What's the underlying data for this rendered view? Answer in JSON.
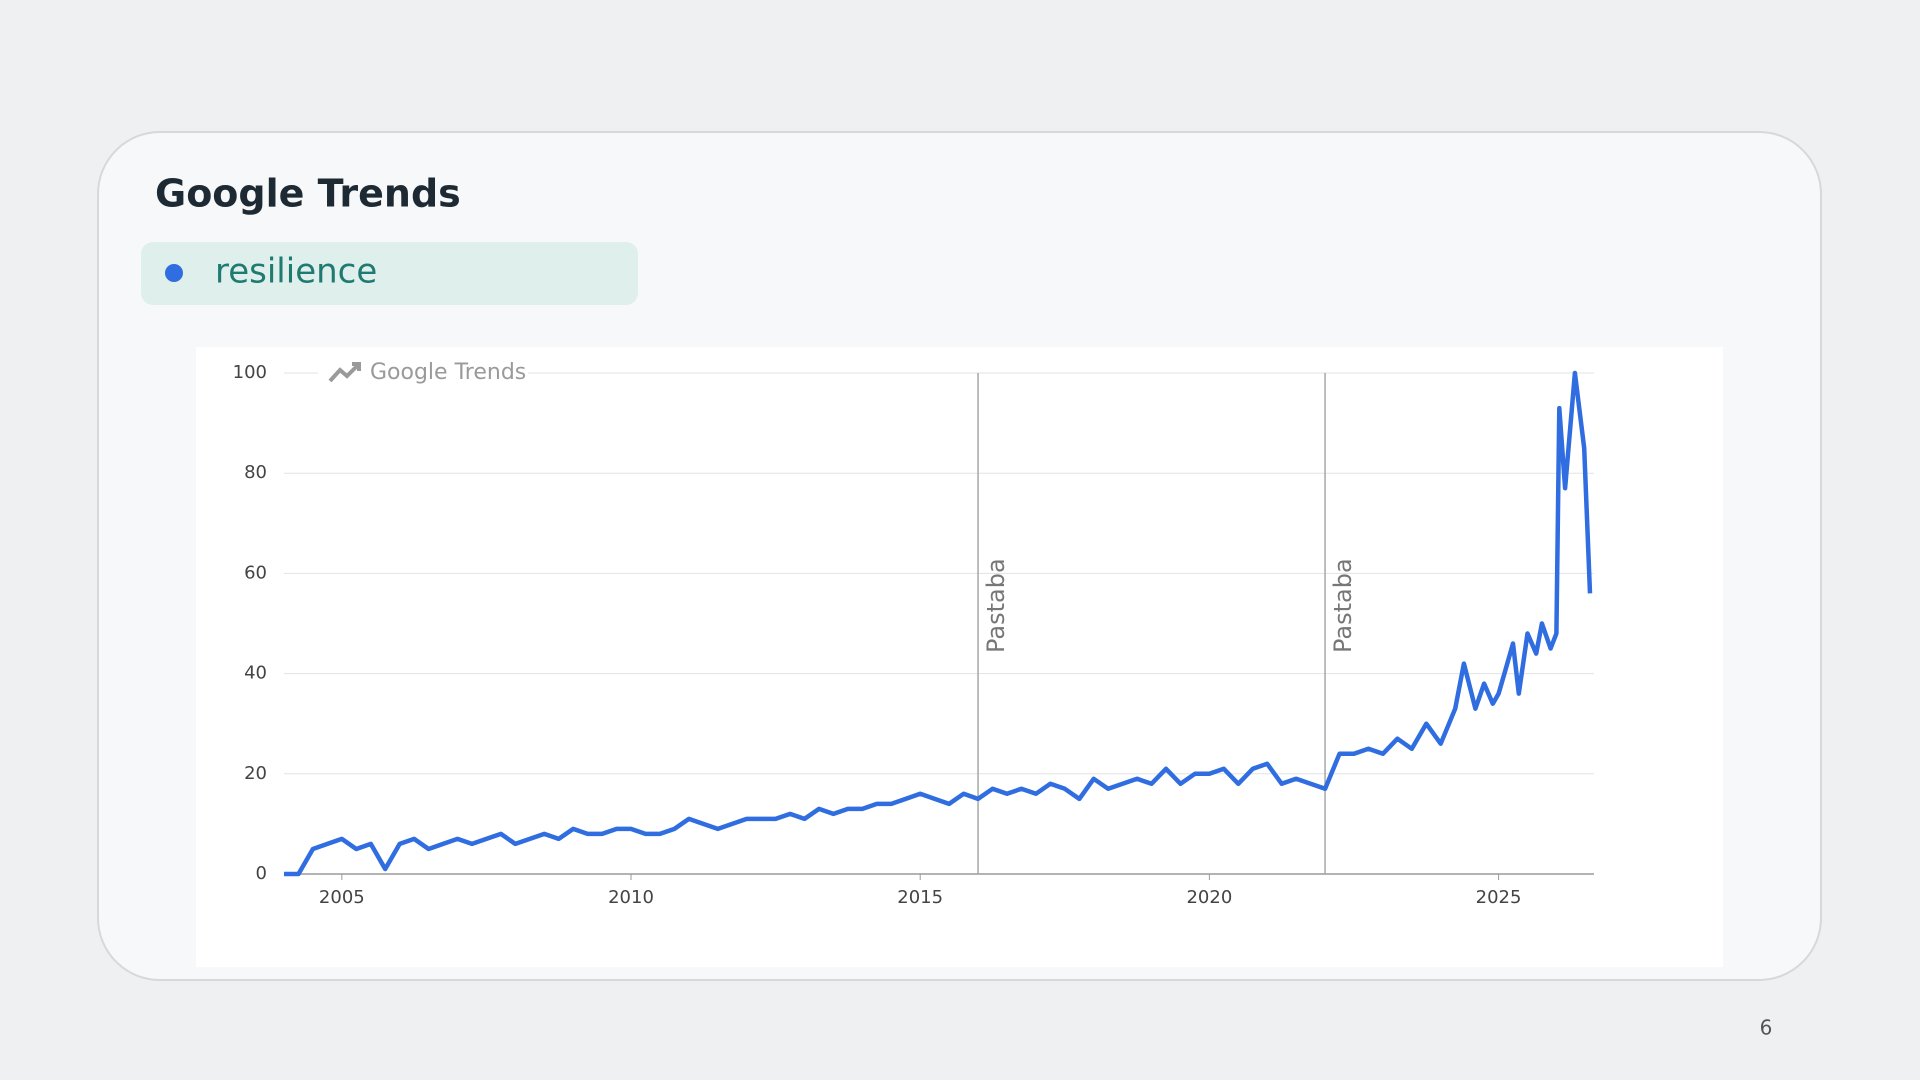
{
  "slide": {
    "title": "Google Trends",
    "page_number": "6"
  },
  "chart_data": {
    "type": "line",
    "watermark": "Google Trends",
    "xlim": [
      2004,
      2026.65
    ],
    "xticks": [
      2005,
      2010,
      2015,
      2020,
      2025
    ],
    "ylim": [
      0,
      100
    ],
    "yticks": [
      0,
      20,
      40,
      60,
      80,
      100
    ],
    "grid": true,
    "x": [
      2004,
      2004.25,
      2004.5,
      2004.75,
      2005,
      2005.25,
      2005.5,
      2005.75,
      2006,
      2006.25,
      2006.5,
      2006.75,
      2007,
      2007.25,
      2007.5,
      2007.75,
      2008,
      2008.25,
      2008.5,
      2008.75,
      2009,
      2009.25,
      2009.5,
      2009.75,
      2010,
      2010.25,
      2010.5,
      2010.75,
      2011,
      2011.25,
      2011.5,
      2011.75,
      2012,
      2012.25,
      2012.5,
      2012.75,
      2013,
      2013.25,
      2013.5,
      2013.75,
      2014,
      2014.25,
      2014.5,
      2014.75,
      2015,
      2015.25,
      2015.5,
      2015.75,
      2016,
      2016.25,
      2016.5,
      2016.75,
      2017,
      2017.25,
      2017.5,
      2017.75,
      2018,
      2018.25,
      2018.5,
      2018.75,
      2019,
      2019.25,
      2019.5,
      2019.75,
      2020,
      2020.25,
      2020.5,
      2020.75,
      2021,
      2021.25,
      2021.5,
      2021.75,
      2022,
      2022.25,
      2022.5,
      2022.75,
      2023,
      2023.25,
      2023.5,
      2023.75,
      2024,
      2024.25,
      2024.4,
      2024.6,
      2024.75,
      2024.9,
      2025,
      2025.1,
      2025.25,
      2025.35,
      2025.5,
      2025.65,
      2025.75,
      2025.9,
      2026,
      2026.05,
      2026.15,
      2026.32,
      2026.48,
      2026.58
    ],
    "series": [
      {
        "name": "resilience",
        "color": "#2f6de0",
        "values": [
          0,
          0,
          5,
          6,
          7,
          5,
          6,
          1,
          6,
          7,
          5,
          6,
          7,
          6,
          7,
          8,
          6,
          7,
          8,
          7,
          9,
          8,
          8,
          9,
          9,
          8,
          8,
          9,
          11,
          10,
          9,
          10,
          11,
          11,
          11,
          12,
          11,
          13,
          12,
          13,
          13,
          14,
          14,
          15,
          16,
          15,
          14,
          16,
          15,
          17,
          16,
          17,
          16,
          18,
          17,
          15,
          19,
          17,
          18,
          19,
          18,
          21,
          18,
          20,
          20,
          21,
          18,
          21,
          22,
          18,
          19,
          18,
          17,
          24,
          24,
          25,
          24,
          27,
          25,
          30,
          26,
          33,
          42,
          33,
          38,
          34,
          36,
          40,
          46,
          36,
          48,
          44,
          50,
          45,
          48,
          93,
          77,
          100,
          85,
          56
        ]
      }
    ],
    "annotations": [
      {
        "x": 2016,
        "label": "Pastaba"
      },
      {
        "x": 2022,
        "label": "Pastaba"
      }
    ]
  }
}
